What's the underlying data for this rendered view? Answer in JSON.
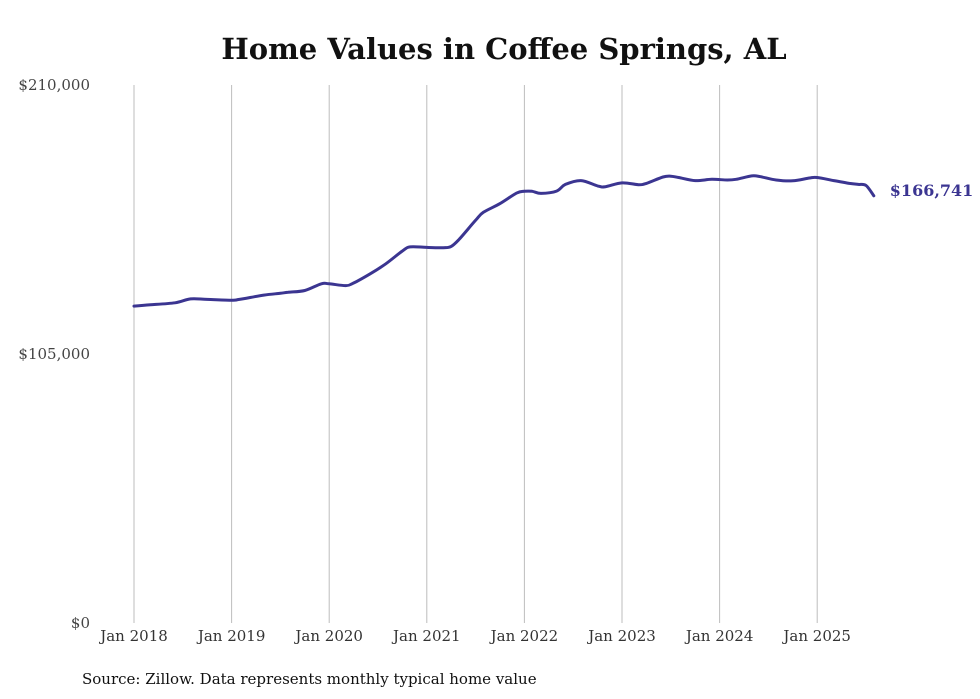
{
  "chart_data": {
    "type": "line",
    "title": "Home Values in Coffee Springs, AL",
    "xlabel": "",
    "ylabel": "",
    "ylim": [
      0,
      210000
    ],
    "yticks": [
      {
        "value": 0,
        "label": "$0"
      },
      {
        "value": 105000,
        "label": "$105,000"
      },
      {
        "value": 210000,
        "label": "$210,000"
      }
    ],
    "xticks": [
      {
        "value": 2018,
        "label": "Jan 2018"
      },
      {
        "value": 2019,
        "label": "Jan 2019"
      },
      {
        "value": 2020,
        "label": "Jan 2020"
      },
      {
        "value": 2021,
        "label": "Jan 2021"
      },
      {
        "value": 2022,
        "label": "Jan 2022"
      },
      {
        "value": 2023,
        "label": "Jan 2023"
      },
      {
        "value": 2024,
        "label": "Jan 2024"
      },
      {
        "value": 2025,
        "label": "Jan 2025"
      }
    ],
    "xlim": [
      2018,
      2025.58
    ],
    "grid": "vertical",
    "line_color": "#3b3591",
    "series": [
      {
        "name": "Typical home value",
        "x": [
          2018.0,
          2018.17,
          2018.42,
          2018.58,
          2018.75,
          2019.0,
          2019.08,
          2019.33,
          2019.5,
          2019.58,
          2019.75,
          2019.92,
          2020.0,
          2020.17,
          2020.25,
          2020.42,
          2020.58,
          2020.75,
          2020.83,
          2021.0,
          2021.17,
          2021.25,
          2021.33,
          2021.5,
          2021.58,
          2021.75,
          2021.92,
          2022.0,
          2022.08,
          2022.17,
          2022.33,
          2022.42,
          2022.58,
          2022.75,
          2022.83,
          2023.0,
          2023.17,
          2023.25,
          2023.42,
          2023.5,
          2023.58,
          2023.75,
          2023.92,
          2024.08,
          2024.17,
          2024.33,
          2024.42,
          2024.58,
          2024.75,
          2024.92,
          2025.0,
          2025.17,
          2025.33,
          2025.42,
          2025.5,
          2025.58
        ],
        "y": [
          123700,
          124200,
          125000,
          126500,
          126300,
          126000,
          126300,
          128000,
          128700,
          129100,
          129800,
          132400,
          132400,
          131700,
          132700,
          136300,
          140200,
          145200,
          146800,
          146600,
          146500,
          147000,
          149700,
          157200,
          160300,
          163700,
          167800,
          168500,
          168500,
          167700,
          168600,
          171200,
          172700,
          170600,
          170300,
          171800,
          171100,
          171600,
          174100,
          174400,
          173900,
          172700,
          173200,
          172900,
          173200,
          174500,
          174200,
          172900,
          172600,
          173700,
          173900,
          172700,
          171600,
          171200,
          170800,
          166741
        ]
      }
    ],
    "end_label": "$166,741",
    "source": "Source: Zillow. Data represents monthly typical home value"
  }
}
